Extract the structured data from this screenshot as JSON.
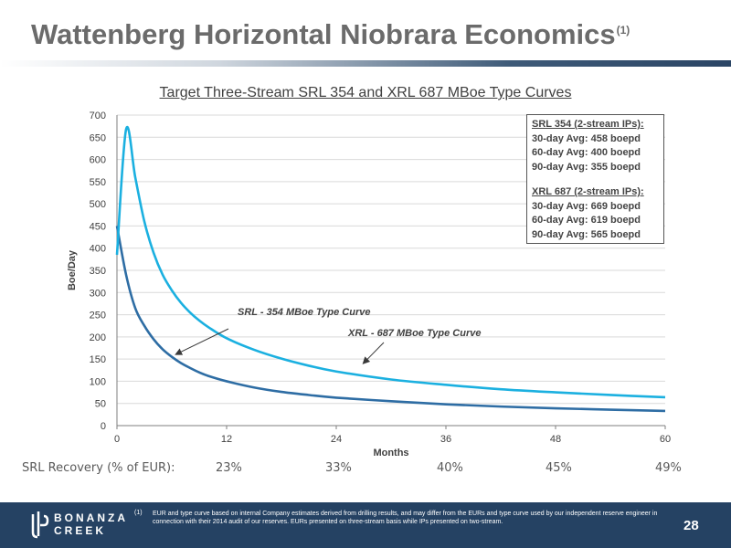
{
  "slide": {
    "title": "Wattenberg Horizontal Niobrara Economics",
    "title_superscript": "(1)",
    "page_number": "28"
  },
  "chart_data": {
    "type": "line",
    "title": "Target Three-Stream SRL 354 and XRL 687 MBoe Type Curves",
    "xlabel": "Months",
    "ylabel": "Boe/Day",
    "xlim": [
      0,
      60
    ],
    "ylim": [
      0,
      700
    ],
    "x_ticks": [
      "0",
      "12",
      "24",
      "36",
      "48",
      "60"
    ],
    "y_ticks": [
      "0",
      "50",
      "100",
      "150",
      "200",
      "250",
      "300",
      "350",
      "400",
      "450",
      "500",
      "550",
      "600",
      "650",
      "700"
    ],
    "grid": true,
    "series": [
      {
        "name": "SRL - 354 MBoe Type Curve",
        "color": "#2e6da4",
        "x": [
          0,
          1,
          2,
          3,
          4,
          5,
          6,
          7,
          8,
          9,
          10,
          12,
          15,
          18,
          21,
          24,
          30,
          36,
          42,
          48,
          54,
          60
        ],
        "y": [
          450,
          340,
          265,
          225,
          195,
          172,
          155,
          141,
          130,
          120,
          112,
          100,
          86,
          76,
          69,
          63,
          55,
          48,
          43,
          39,
          36,
          33
        ]
      },
      {
        "name": "XRL - 687 MBoe Type Curve",
        "color": "#1bb0e0",
        "x": [
          0,
          1,
          2,
          3,
          4,
          5,
          6,
          7,
          8,
          9,
          10,
          12,
          15,
          18,
          21,
          24,
          30,
          36,
          42,
          48,
          54,
          60
        ],
        "y": [
          385,
          668,
          560,
          460,
          390,
          340,
          305,
          277,
          255,
          237,
          222,
          197,
          171,
          151,
          135,
          122,
          104,
          92,
          82,
          75,
          69,
          64
        ]
      }
    ],
    "annotations": [
      {
        "text": "SRL - 354 MBoe Type Curve",
        "target_series": 0,
        "target_x": 6.5,
        "target_y": 155
      },
      {
        "text": "XRL - 687 MBoe Type Curve",
        "target_series": 1,
        "target_x": 27,
        "target_y": 135
      }
    ]
  },
  "ip_box": {
    "srl_header": "SRL 354 (2-stream IPs):",
    "srl_lines": [
      "30-day Avg: 458 boepd",
      "60-day Avg: 400 boepd",
      "90-day Avg: 355 boepd"
    ],
    "xrl_header": "XRL 687 (2-stream IPs):",
    "xrl_lines": [
      "30-day Avg: 669 boepd",
      "60-day Avg: 619 boepd",
      "90-day Avg: 565 boepd"
    ]
  },
  "recovery": {
    "label": "SRL Recovery (% of EUR):",
    "values": [
      "23%",
      "33%",
      "40%",
      "45%",
      "49%"
    ]
  },
  "footer": {
    "logo_line1": "BONANZA",
    "logo_line2": "CREEK",
    "footnote_number": "(1)",
    "footnote_text": "EUR and type curve based on internal Company estimates derived from drilling results, and may differ from the EURs and type curve used by our independent reserve engineer in connection with their 2014 audit of our reserves.  EURs presented on three-stream basis while IPs presented on two-stream."
  }
}
